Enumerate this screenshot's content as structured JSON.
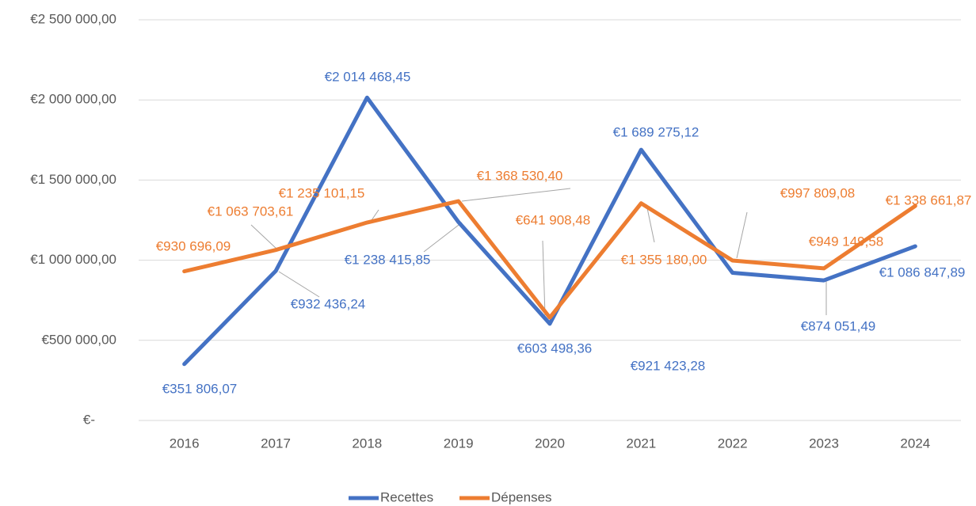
{
  "chart_data": {
    "type": "line",
    "categories": [
      "2016",
      "2017",
      "2018",
      "2019",
      "2020",
      "2021",
      "2022",
      "2023",
      "2024"
    ],
    "series": [
      {
        "name": "Recettes",
        "color": "#4472c4",
        "values": [
          351806.07,
          932436.24,
          2014468.45,
          1238415.85,
          603498.36,
          1689275.12,
          921423.28,
          874051.49,
          1086847.89
        ],
        "value_labels": [
          "€351 806,07",
          "€932 436,24",
          "€2 014 468,45",
          "€1 238 415,85",
          "€603 498,36",
          "€1 689 275,12",
          "€921 423,28",
          "€874 051,49",
          "€1 086 847,89"
        ]
      },
      {
        "name": "Dépenses",
        "color": "#ed7d31",
        "values": [
          930696.09,
          1063703.61,
          1235101.15,
          1368530.4,
          641908.48,
          1355180.0,
          997809.08,
          949149.58,
          1338661.87
        ],
        "value_labels": [
          "€930 696,09",
          "€1 063 703,61",
          "€1 235 101,15",
          "€1 368 530,40",
          "€641 908,48",
          "€1 355 180,00",
          "€997 809,08",
          "€949 149,58",
          "€1 338 661,87"
        ]
      }
    ],
    "ylim": [
      0,
      2500000
    ],
    "yticks": [
      {
        "value": 0,
        "label": "€-"
      },
      {
        "value": 500000,
        "label": "€500 000,00"
      },
      {
        "value": 1000000,
        "label": "€1 000 000,00"
      },
      {
        "value": 1500000,
        "label": "€1 500 000,00"
      },
      {
        "value": 2000000,
        "label": "€2 000 000,00"
      },
      {
        "value": 2500000,
        "label": "€2 500 000,00"
      }
    ],
    "grid": true,
    "legend": "bottom"
  }
}
